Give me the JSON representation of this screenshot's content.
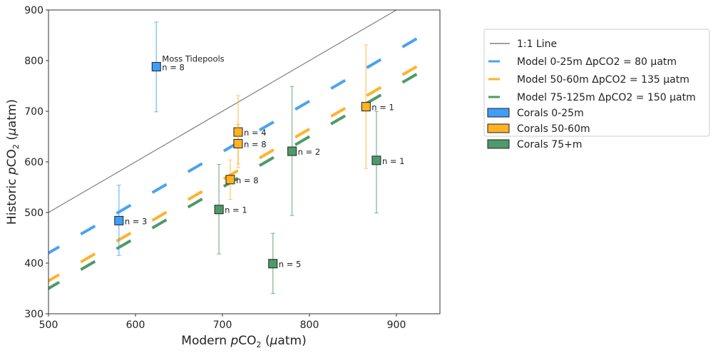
{
  "chart_data": {
    "type": "scatter",
    "xlabel": "Modern pCO2 (µatm)",
    "ylabel": "Historic pCO2 (µatm)",
    "xlim": [
      500,
      950
    ],
    "ylim": [
      300,
      900
    ],
    "xticks": [
      500,
      600,
      700,
      800,
      900
    ],
    "yticks": [
      300,
      400,
      500,
      600,
      700,
      800,
      900
    ],
    "grid": false,
    "legend_placement": "outside-right-top",
    "reference_line": {
      "name": "1:1 Line",
      "offset": 0,
      "color": "#808080"
    },
    "model_lines": [
      {
        "name": "Model 0-25m ΔpCO2 = 80 µatm",
        "offset": 80,
        "color": "#4aa3f0"
      },
      {
        "name": "Model 50-60m ΔpCO2 = 135 µatm",
        "offset": 135,
        "color": "#ffb22e"
      },
      {
        "name": "Model 75-125m ΔpCO2 = 150 µatm",
        "offset": 150,
        "color": "#4d9a68"
      }
    ],
    "series": [
      {
        "name": "Corals 0-25m",
        "color": "#3f9ef5",
        "points": [
          {
            "x": 624,
            "y": 788,
            "lo": 699,
            "hi": 876,
            "label": "n = 8",
            "note": "Moss Tidepools"
          },
          {
            "x": 581,
            "y": 484,
            "lo": 415,
            "hi": 554,
            "label": "n = 3"
          }
        ]
      },
      {
        "name": "Corals 50-60m",
        "color": "#ffb224",
        "points": [
          {
            "x": 718,
            "y": 659,
            "lo": 589,
            "hi": 731,
            "label": "n = 4"
          },
          {
            "x": 718,
            "y": 636,
            "lo": 596,
            "hi": 674,
            "label": "n = 8"
          },
          {
            "x": 709,
            "y": 565,
            "lo": 526,
            "hi": 604,
            "label": "n = 8"
          },
          {
            "x": 865,
            "y": 709,
            "lo": 587,
            "hi": 831,
            "label": "n = 1"
          }
        ]
      },
      {
        "name": "Corals 75+m",
        "color": "#4f9a6a",
        "points": [
          {
            "x": 696,
            "y": 506,
            "lo": 418,
            "hi": 595,
            "label": "n = 1"
          },
          {
            "x": 780,
            "y": 621,
            "lo": 494,
            "hi": 749,
            "label": "n = 2"
          },
          {
            "x": 758,
            "y": 399,
            "lo": 340,
            "hi": 459,
            "label": "n = 5"
          },
          {
            "x": 877,
            "y": 603,
            "lo": 499,
            "hi": 700,
            "label": "n = 1"
          }
        ]
      }
    ]
  }
}
